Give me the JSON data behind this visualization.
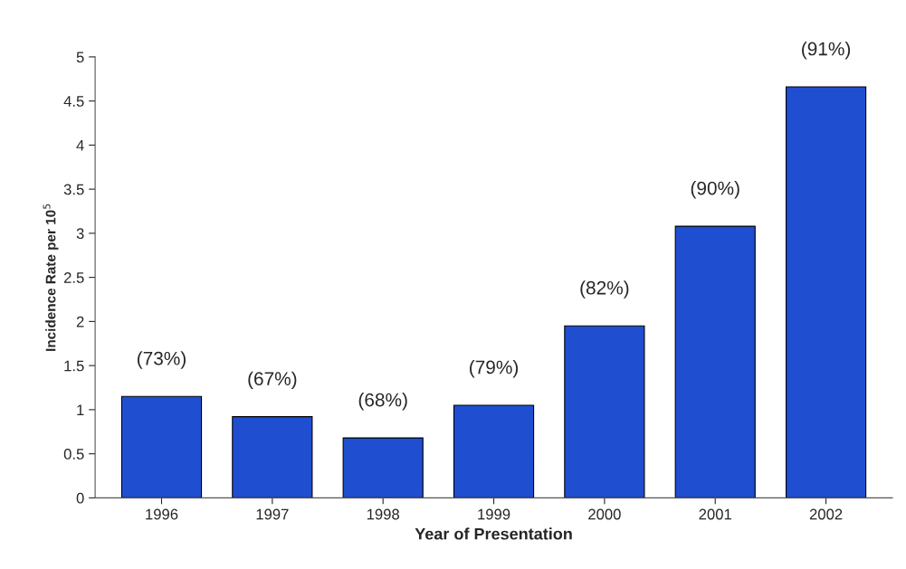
{
  "chart_data": {
    "type": "bar",
    "xlabel": "Year of Presentation",
    "ylabel": "Incidence Rate per 10$^{5}$",
    "categories": [
      "1996",
      "1997",
      "1998",
      "1999",
      "2000",
      "2001",
      "2002"
    ],
    "values": [
      1.15,
      0.92,
      0.68,
      1.05,
      1.95,
      3.08,
      4.66
    ],
    "annotations": [
      {
        "text": "(73%)",
        "x": "1996",
        "y": 1.15
      },
      {
        "text": "(67%)",
        "x": "1997",
        "y": 0.92
      },
      {
        "text": "(68%)",
        "x": "1998",
        "y": 0.68
      },
      {
        "text": "(79%)",
        "x": "1999",
        "y": 1.05
      },
      {
        "text": "(82%)",
        "x": "2000",
        "y": 1.95
      },
      {
        "text": "(90%)",
        "x": "2001",
        "y": 3.08
      },
      {
        "text": "(91%)",
        "x": "2002",
        "y": 4.66
      }
    ],
    "color": "#1f4fd0",
    "ylim": [
      0,
      5
    ],
    "yticks": [
      0,
      0.5,
      1,
      1.5,
      2,
      2.5,
      3,
      3.5,
      4,
      4.5,
      5
    ],
    "grid": false
  }
}
